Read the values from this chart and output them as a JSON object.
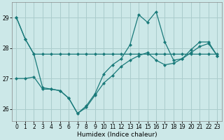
{
  "xlabel": "Humidex (Indice chaleur)",
  "bg_color": "#cce8e8",
  "grid_color": "#aacccc",
  "line_color": "#1a7a7a",
  "xlim": [
    -0.5,
    23.5
  ],
  "ylim": [
    25.6,
    29.5
  ],
  "yticks": [
    26,
    27,
    28,
    29
  ],
  "xticks": [
    0,
    1,
    2,
    3,
    4,
    5,
    6,
    7,
    8,
    9,
    10,
    11,
    12,
    13,
    14,
    15,
    16,
    17,
    18,
    19,
    20,
    21,
    22,
    23
  ],
  "s1": [
    29.0,
    28.3,
    27.8,
    27.8,
    27.8,
    27.8,
    27.8,
    27.8,
    27.8,
    27.8,
    27.8,
    27.8,
    27.8,
    27.8,
    27.8,
    27.8,
    27.8,
    27.8,
    27.8,
    27.8,
    27.8,
    27.8,
    27.8,
    27.8
  ],
  "s2": [
    29.0,
    28.3,
    27.8,
    26.7,
    26.65,
    26.6,
    26.35,
    25.85,
    26.1,
    26.5,
    27.15,
    27.45,
    27.65,
    28.1,
    29.1,
    28.85,
    29.2,
    28.2,
    27.6,
    27.65,
    27.95,
    28.2,
    28.2,
    27.75
  ],
  "s3": [
    27.0,
    27.0,
    27.05,
    26.65,
    26.65,
    26.6,
    26.35,
    25.85,
    26.05,
    26.45,
    26.85,
    27.1,
    27.4,
    27.6,
    27.75,
    27.85,
    27.6,
    27.45,
    27.5,
    27.65,
    27.85,
    28.05,
    28.15,
    27.75
  ],
  "markersize": 2.5,
  "linewidth": 0.9
}
